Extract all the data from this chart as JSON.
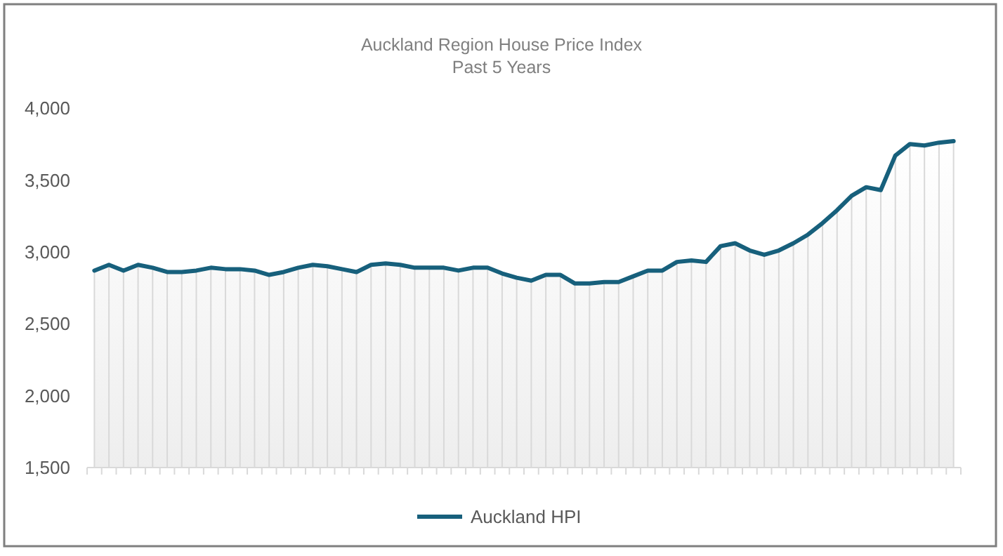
{
  "chart_data": {
    "type": "area",
    "title": "Auckland Region House Price Index",
    "subtitle": "Past 5 Years",
    "categories": [
      null,
      null,
      null,
      null,
      null,
      null,
      null,
      null,
      null,
      null,
      null,
      null,
      null,
      null,
      null,
      null,
      null,
      null,
      null,
      null,
      null,
      null,
      null,
      null,
      null,
      null,
      null,
      null,
      null,
      null,
      null,
      null,
      null,
      null,
      null,
      null,
      null,
      null,
      null,
      null,
      null,
      null,
      null,
      null,
      null,
      null,
      null,
      null,
      null,
      null,
      null,
      null,
      null,
      null,
      null,
      null,
      null,
      null,
      null,
      null
    ],
    "series": [
      {
        "name": "Auckland HPI",
        "color": "#17607c",
        "values": [
          2870,
          2910,
          2870,
          2910,
          2890,
          2860,
          2860,
          2870,
          2890,
          2880,
          2880,
          2870,
          2840,
          2860,
          2890,
          2910,
          2900,
          2880,
          2860,
          2910,
          2920,
          2910,
          2890,
          2890,
          2890,
          2870,
          2890,
          2890,
          2850,
          2820,
          2800,
          2840,
          2840,
          2780,
          2780,
          2790,
          2790,
          2830,
          2870,
          2870,
          2930,
          2940,
          2930,
          3040,
          3060,
          3010,
          2980,
          3010,
          3060,
          3120,
          3200,
          3290,
          3390,
          3450,
          3430,
          3670,
          3750,
          3740,
          3760,
          3770
        ]
      }
    ],
    "ylim": [
      1500,
      4000
    ],
    "yticks": [
      {
        "value": 1500,
        "label": "1,500"
      },
      {
        "value": 2000,
        "label": "2,000"
      },
      {
        "value": 2500,
        "label": "2,500"
      },
      {
        "value": 3000,
        "label": "3,000"
      },
      {
        "value": 3500,
        "label": "3,500"
      },
      {
        "value": 4000,
        "label": "4,000"
      }
    ],
    "grid": "x",
    "legend": "bottom"
  }
}
